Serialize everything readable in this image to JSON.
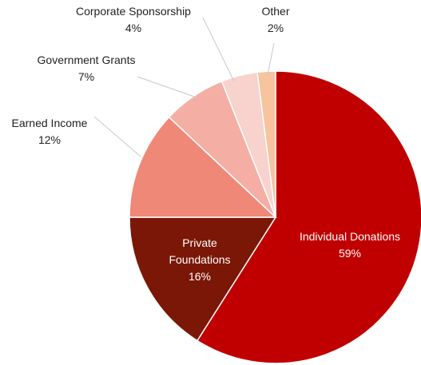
{
  "chart_data": {
    "type": "pie",
    "title": "",
    "start": "12 o'clock, clockwise",
    "slices": [
      {
        "label": "Individual Donations",
        "value": 59,
        "value_label": "59%",
        "color": "#c00000",
        "label_inside": true
      },
      {
        "label": "Private Foundations",
        "lines": [
          "Private",
          "Foundations"
        ],
        "value": 16,
        "value_label": "16%",
        "color": "#7b1707",
        "label_inside": true
      },
      {
        "label": "Earned Income",
        "value": 12,
        "value_label": "12%",
        "color": "#f08878",
        "label_inside": false
      },
      {
        "label": "Government Grants",
        "value": 7,
        "value_label": "7%",
        "color": "#f5aea4",
        "label_inside": false
      },
      {
        "label": "Corporate Sponsorship",
        "value": 4,
        "value_label": "4%",
        "color": "#f8d2cc",
        "label_inside": false
      },
      {
        "label": "Other",
        "value": 2,
        "value_label": "2%",
        "color": "#f7c49e",
        "label_inside": false
      }
    ]
  }
}
